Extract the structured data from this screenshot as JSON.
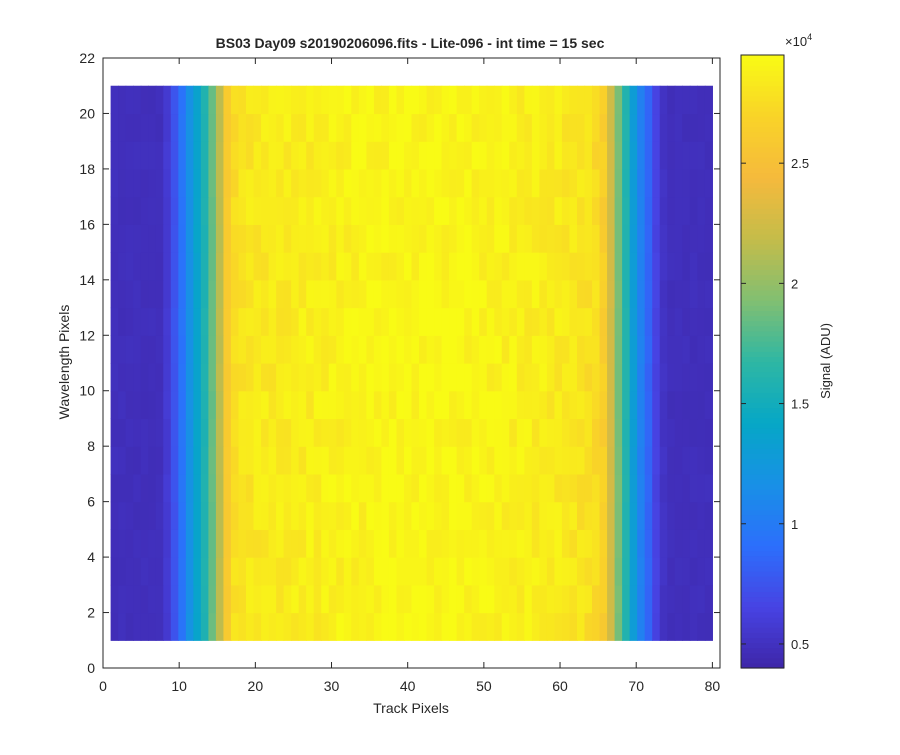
{
  "chart_data": {
    "type": "heatmap",
    "title": "BS03 Day09  s20190206096.fits - Lite-096 - int time = 15 sec",
    "xlabel": "Track Pixels",
    "ylabel": "Wavelength Pixels",
    "xlim": [
      0,
      81
    ],
    "ylim": [
      0,
      22
    ],
    "xticks": [
      0,
      10,
      20,
      30,
      40,
      50,
      60,
      70,
      80
    ],
    "yticks": [
      0,
      2,
      4,
      6,
      8,
      10,
      12,
      14,
      16,
      18,
      20,
      22
    ],
    "grid": false,
    "data_extent": {
      "x": [
        1,
        80
      ],
      "y": [
        1,
        21
      ]
    },
    "track_pixels": {
      "from": 1,
      "to": 80
    },
    "wavelength_pixels": {
      "from": 1,
      "to": 20
    },
    "track_profile_adu": [
      4800,
      4800,
      4800,
      4800,
      4800,
      4800,
      4800,
      5800,
      7500,
      9500,
      11800,
      13800,
      15800,
      18500,
      21500,
      26000,
      27600,
      28000,
      28200,
      28300,
      28350,
      28400,
      28450,
      28500,
      28550,
      28600,
      28650,
      28700,
      28750,
      28800,
      28850,
      28900,
      28950,
      29000,
      29050,
      29100,
      29100,
      29150,
      29150,
      29200,
      29200,
      29200,
      29200,
      29200,
      29150,
      29150,
      29100,
      29100,
      29050,
      29000,
      28950,
      28900,
      28850,
      28800,
      28750,
      28700,
      28650,
      28600,
      28500,
      28400,
      28300,
      28200,
      28000,
      27800,
      27500,
      26500,
      22500,
      19000,
      16000,
      13000,
      10500,
      8500,
      6500,
      5200,
      4800,
      4800,
      4800,
      4800,
      4800,
      4800
    ],
    "colorbar": {
      "label": "Signal (ADU)",
      "exponent_label": "×10",
      "exponent_power": "4",
      "clim": [
        4000,
        29500
      ],
      "ticks": [
        5000,
        10000,
        15000,
        20000,
        25000
      ],
      "tick_labels": [
        "0.5",
        "1",
        "1.5",
        "2",
        "2.5"
      ],
      "colormap": "parula",
      "colormap_stops": [
        "#3e26a8",
        "#4743e3",
        "#2c6ffc",
        "#1890e6",
        "#06a7c6",
        "#2eb7a4",
        "#81bf72",
        "#c4bc4a",
        "#f5ba3c",
        "#f9d328",
        "#f9fb15"
      ]
    }
  }
}
